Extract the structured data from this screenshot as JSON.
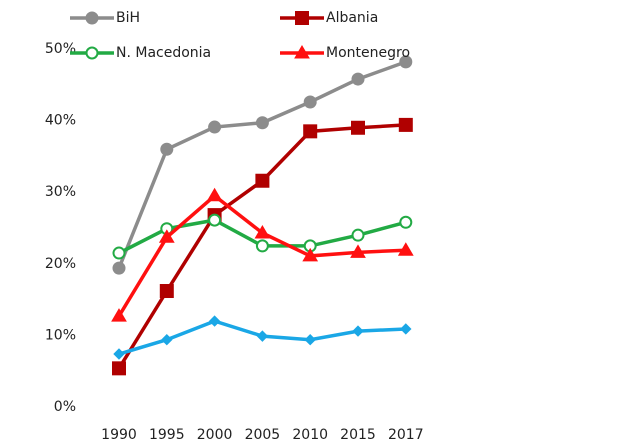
{
  "chart_data": {
    "type": "line",
    "categories": [
      "1990",
      "1995",
      "2000",
      "2005",
      "2010",
      "2015",
      "2017"
    ],
    "ylim": [
      0,
      50
    ],
    "yticks": [
      {
        "value": 0,
        "label": "0%"
      },
      {
        "value": 10,
        "label": "10%"
      },
      {
        "value": 20,
        "label": "20%"
      },
      {
        "value": 30,
        "label": "30%"
      },
      {
        "value": 40,
        "label": "40%"
      },
      {
        "value": 50,
        "label": "50%"
      }
    ],
    "grid": false,
    "series": [
      {
        "name": "BiH",
        "color": "#8c8c8c",
        "marker": "circle",
        "values": [
          19.4,
          36.0,
          39.1,
          39.7,
          42.6,
          45.8,
          48.2
        ]
      },
      {
        "name": "Albania",
        "color": "#b00000",
        "marker": "square",
        "values": [
          5.4,
          16.2,
          26.8,
          31.6,
          38.5,
          39.0,
          39.4
        ]
      },
      {
        "name": "N. Macedonia",
        "color": "#22aa44",
        "marker": "open-circle",
        "values": [
          21.5,
          24.9,
          26.1,
          22.5,
          22.5,
          24.0,
          25.8
        ]
      },
      {
        "name": "Montenegro",
        "color": "#ff1010",
        "marker": "triangle",
        "values": [
          12.7,
          23.7,
          29.5,
          24.3,
          21.1,
          21.6,
          21.9
        ]
      },
      {
        "color": "#1aa7e6",
        "marker": "diamond",
        "values": [
          7.4,
          9.4,
          12.0,
          9.9,
          9.4,
          10.6,
          10.9
        ]
      }
    ]
  }
}
